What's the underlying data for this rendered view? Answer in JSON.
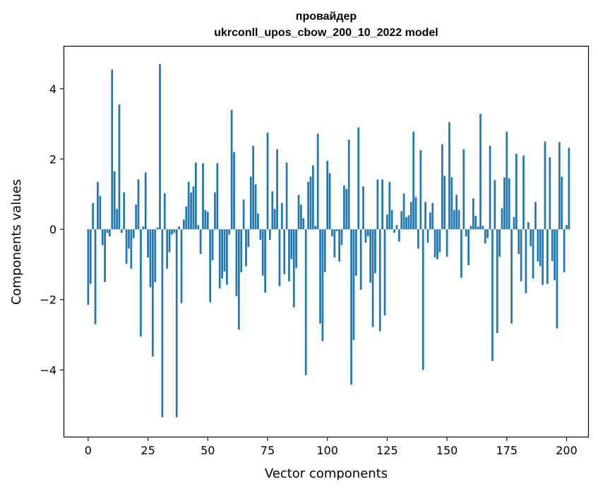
{
  "chart_data": {
    "type": "bar",
    "title_line1": "провайдер",
    "title_line2": "ukrconll_upos_cbow_200_10_2022 model",
    "xlabel": "Vector components",
    "ylabel": "Components values",
    "xlim": [
      -10,
      209
    ],
    "ylim": [
      -5.9,
      5.2
    ],
    "x_ticks": [
      0,
      25,
      50,
      75,
      100,
      125,
      150,
      175,
      200
    ],
    "y_ticks": [
      -4,
      -2,
      0,
      2,
      4
    ],
    "x_tick_labels": [
      "0",
      "25",
      "50",
      "75",
      "100",
      "125",
      "150",
      "175",
      "200"
    ],
    "y_tick_labels": [
      "−4",
      "−2",
      "0",
      "2",
      "4"
    ],
    "bar_color": "#1f77b4",
    "grid": false,
    "values": [
      -2.15,
      -1.55,
      0.75,
      -2.7,
      1.35,
      0.95,
      -0.45,
      -1.5,
      -0.1,
      -0.2,
      4.55,
      1.65,
      0.58,
      3.55,
      -0.1,
      1.05,
      -0.98,
      -0.55,
      -1.12,
      -0.25,
      0.7,
      1.42,
      -3.05,
      0.08,
      1.62,
      -0.8,
      -1.65,
      -3.62,
      -1.5,
      0.05,
      4.7,
      -5.35,
      1.03,
      -1.12,
      -0.65,
      -0.15,
      -0.1,
      -5.35,
      0.08,
      -2.1,
      0.28,
      0.65,
      1.35,
      1.05,
      1.22,
      1.9,
      0.12,
      -0.7,
      1.88,
      0.55,
      0.5,
      -2.08,
      -0.88,
      1.05,
      1.88,
      -1.68,
      -1.4,
      -1.2,
      -1.58,
      -0.15,
      3.4,
      2.2,
      -1.9,
      -2.85,
      -1.22,
      0.85,
      -1.05,
      -0.5,
      1.5,
      2.38,
      1.28,
      0.45,
      -0.3,
      -1.32,
      -1.8,
      2.75,
      -0.3,
      1.08,
      0.58,
      2.28,
      -1.62,
      0.75,
      -1.28,
      1.9,
      -1.48,
      -0.85,
      -2.22,
      -1.1,
      0.98,
      0.7,
      0.32,
      -4.15,
      1.35,
      1.5,
      1.82,
      0.1,
      2.72,
      -2.68,
      -3.18,
      -1.22,
      1.95,
      1.6,
      -0.2,
      -0.8,
      -0.05,
      -0.92,
      -0.45,
      1.25,
      1.15,
      2.55,
      -4.42,
      -3.15,
      -1.32,
      2.9,
      -1.72,
      1.22,
      -0.38,
      -0.2,
      -1.52,
      -2.78,
      -1.25,
      1.42,
      -2.9,
      1.42,
      -2.45,
      0.42,
      1.35,
      0.55,
      -0.1,
      0.12,
      -0.35,
      0.52,
      1.02,
      0.35,
      0.4,
      0.78,
      2.78,
      0.92,
      -0.55,
      2.25,
      -4.0,
      0.78,
      -0.38,
      0.48,
      0.75,
      -0.8,
      -0.85,
      -0.65,
      2.42,
      1.52,
      -0.78,
      3.05,
      1.48,
      0.55,
      0.98,
      0.55,
      -1.38,
      2.28,
      -0.2,
      -1.02,
      0.1,
      0.88,
      0.38,
      0.08,
      3.28,
      0.1,
      -0.4,
      -0.25,
      2.38,
      -3.75,
      1.4,
      -2.95,
      -0.78,
      0.6,
      1.48,
      2.78,
      1.45,
      -2.68,
      0.35,
      2.15,
      -0.7,
      -1.48,
      2.1,
      -1.82,
      0.2,
      -0.48,
      -1.4,
      0.78,
      -0.92,
      -1.05,
      -1.58,
      2.5,
      -1.55,
      2.05,
      -0.9,
      -1.45,
      -2.82,
      2.48,
      1.5,
      -1.22,
      0.12,
      2.32
    ]
  }
}
